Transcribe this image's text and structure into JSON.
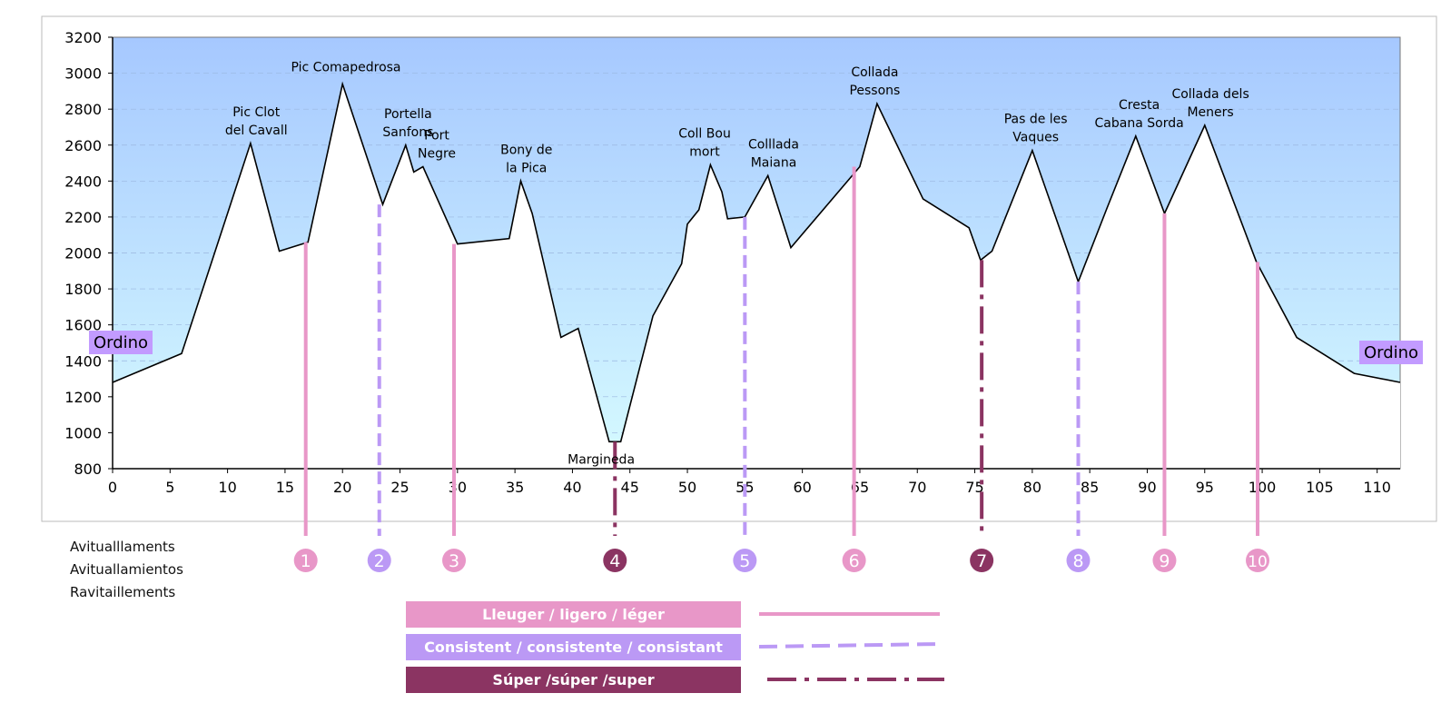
{
  "chart_data": {
    "type": "area",
    "title": "",
    "xlabel": "",
    "ylabel": "",
    "xlim": [
      0,
      112
    ],
    "ylim": [
      800,
      3200
    ],
    "x_ticks": [
      0,
      5,
      10,
      15,
      20,
      25,
      30,
      35,
      40,
      45,
      50,
      55,
      60,
      65,
      70,
      75,
      80,
      85,
      90,
      95,
      100,
      105,
      110
    ],
    "y_ticks": [
      800,
      1000,
      1200,
      1400,
      1600,
      1800,
      2000,
      2200,
      2400,
      2600,
      2800,
      3000,
      3200
    ],
    "grid": "horizontal-dashed",
    "colors": {
      "sky_top": "#a6c8ff",
      "sky_bottom": "#d6fbff",
      "light": "#e897c8",
      "consistent": "#bb99f5",
      "super": "#8b3462",
      "endpoint_label_bg": "#c29bff"
    },
    "series": [
      {
        "x": [
          0,
          6,
          12,
          14.5,
          17,
          20,
          23.5,
          25.5,
          26.2,
          27,
          30,
          34.5,
          35.5,
          36.5,
          39,
          40.5,
          43.2,
          44.2,
          47,
          49.5,
          50,
          51,
          52,
          53,
          53.5,
          55,
          57,
          59,
          65,
          66.5,
          70.5,
          74.5,
          75.5,
          76.5,
          80,
          84,
          86.5,
          89,
          91.5,
          95,
          99.5,
          103,
          108,
          112
        ],
        "y": [
          1280,
          1440,
          2610,
          2010,
          2060,
          2940,
          2270,
          2600,
          2450,
          2480,
          2050,
          2080,
          2400,
          2220,
          1530,
          1580,
          950,
          950,
          1650,
          1940,
          2160,
          2240,
          2490,
          2340,
          2190,
          2200,
          2430,
          2030,
          2480,
          2830,
          2300,
          2140,
          1960,
          2010,
          2570,
          1840,
          2250,
          2650,
          2220,
          2710,
          1950,
          1530,
          1330,
          1280
        ]
      }
    ],
    "peaks": [
      {
        "x": 12.5,
        "y": 2610,
        "label_line1": "Pic Clot",
        "label_line2": "del Cavall"
      },
      {
        "x": 20.3,
        "y": 2940,
        "label_line1": "Pic  Comapedrosa",
        "label_line2": ""
      },
      {
        "x": 25.7,
        "y": 2600,
        "label_line1": "Portella",
        "label_line2": "Sanfons"
      },
      {
        "x": 28.2,
        "y": 2480,
        "label_line1": "Port",
        "label_line2": "Negre"
      },
      {
        "x": 36,
        "y": 2400,
        "label_line1": "Bony de",
        "label_line2": "la Pica"
      },
      {
        "x": 42.5,
        "y": 950,
        "label_line1": "Margineda",
        "label_line2": ""
      },
      {
        "x": 51.5,
        "y": 2490,
        "label_line1": "Coll Bou",
        "label_line2": "mort"
      },
      {
        "x": 57.5,
        "y": 2430,
        "label_line1": "Colllada",
        "label_line2": "Maiana"
      },
      {
        "x": 66.3,
        "y": 2830,
        "label_line1": "Collada",
        "label_line2": "Pessons"
      },
      {
        "x": 80.3,
        "y": 2570,
        "label_line1": "Pas de les",
        "label_line2": "Vaques"
      },
      {
        "x": 89.3,
        "y": 2650,
        "label_line1": "Cresta",
        "label_line2": "Cabana Sorda"
      },
      {
        "x": 95.5,
        "y": 2710,
        "label_line1": "Collada dels",
        "label_line2": "Meners"
      }
    ],
    "endpoints": [
      {
        "label": "Ordino",
        "side": "left",
        "x": 0,
        "y": 1280
      },
      {
        "label": "Ordino",
        "side": "right",
        "x": 112,
        "y": 1280
      }
    ],
    "aid_stations": [
      {
        "number": "1",
        "x": 16.8,
        "y": 2060,
        "type": "light"
      },
      {
        "number": "2",
        "x": 23.2,
        "y": 2270,
        "type": "consistent"
      },
      {
        "number": "3",
        "x": 29.7,
        "y": 2050,
        "type": "light"
      },
      {
        "number": "4",
        "x": 43.7,
        "y": 950,
        "type": "super"
      },
      {
        "number": "5",
        "x": 55.0,
        "y": 2200,
        "type": "consistent"
      },
      {
        "number": "6",
        "x": 64.5,
        "y": 2480,
        "type": "light"
      },
      {
        "number": "7",
        "x": 75.6,
        "y": 1960,
        "type": "super"
      },
      {
        "number": "8",
        "x": 84.0,
        "y": 1840,
        "type": "consistent"
      },
      {
        "number": "9",
        "x": 91.5,
        "y": 2220,
        "type": "light"
      },
      {
        "number": "10",
        "x": 99.6,
        "y": 1950,
        "type": "light"
      }
    ]
  },
  "labels": {
    "side_1": "Avitualllaments",
    "side_2": "Avituallamientos",
    "side_3": "Ravitaillements"
  },
  "legend": {
    "light": "Lleuger / ligero / léger",
    "consistent": "Consistent / consistente / consistant",
    "super": "Súper /súper /super"
  }
}
